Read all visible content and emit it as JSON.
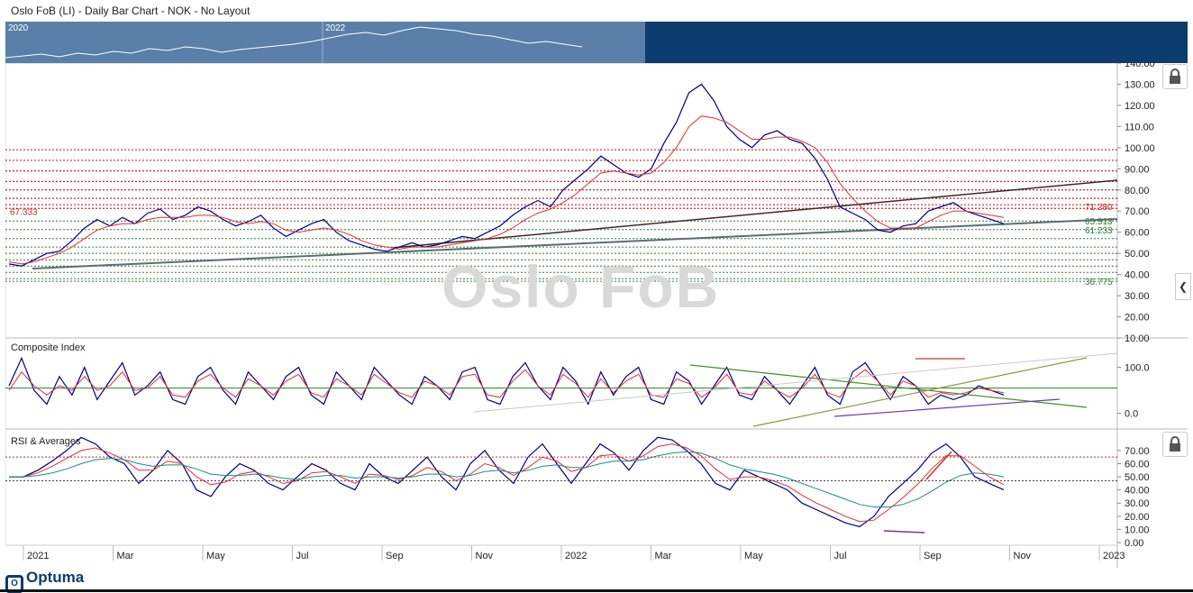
{
  "header": {
    "title": "Oslo FoB (LI) - Daily Bar Chart - NOK - No Layout"
  },
  "navigator": {
    "labels": [
      "2020",
      "2022"
    ]
  },
  "watermark": "Oslo FoB",
  "brand": "Optuma",
  "colors": {
    "price": "#000080",
    "ma_red": "#e03030",
    "ma_teal": "#1a8a8a",
    "green_dot": "#2e7d32",
    "red_dot": "#c62828"
  },
  "chart_data": [
    {
      "type": "line",
      "panel": "price",
      "title": "",
      "ylim": [
        10,
        140
      ],
      "yticks": [
        "140.00",
        "130.00",
        "120.00",
        "110.00",
        "100.00",
        "90.00",
        "80.00",
        "70.00",
        "60.00",
        "50.00",
        "40.00",
        "30.00",
        "20.00",
        "10.00"
      ],
      "x_labels": [
        "2021",
        "Mar",
        "May",
        "Jul",
        "Sep",
        "Nov",
        "2022",
        "Mar",
        "May",
        "Jul",
        "Sep",
        "Nov",
        "2023"
      ],
      "level_labels": {
        "left_red": "67.333",
        "red": "71.280",
        "green1": "65.313",
        "green2": "61.233",
        "green3": "36.775"
      },
      "red_levels": [
        99,
        94,
        89,
        84,
        80,
        76,
        73,
        71.28
      ],
      "green_levels": [
        65.313,
        61.233,
        57,
        53,
        50,
        47,
        44,
        41,
        38,
        36.775
      ],
      "series": [
        {
          "values": [
            45,
            44,
            47,
            50,
            51,
            56,
            62,
            66,
            63,
            67,
            64,
            69,
            71,
            66,
            68,
            72,
            70,
            66,
            63,
            65,
            68,
            62,
            58,
            61,
            64,
            66,
            60,
            56,
            54,
            52,
            51,
            53,
            55,
            53,
            54,
            56,
            58,
            57,
            60,
            63,
            68,
            72,
            75,
            72,
            80,
            85,
            90,
            96,
            92,
            88,
            86,
            90,
            102,
            112,
            126,
            130,
            122,
            110,
            104,
            100,
            106,
            108,
            104,
            102,
            95,
            85,
            72,
            69,
            66,
            61,
            60,
            63,
            64,
            70,
            72,
            74,
            70,
            68,
            66,
            64
          ]
        },
        {
          "values": [
            46,
            45,
            46,
            48,
            50,
            53,
            57,
            61,
            63,
            64,
            64,
            66,
            67,
            67,
            67,
            68,
            68,
            67,
            65,
            64,
            65,
            64,
            61,
            60,
            61,
            62,
            61,
            59,
            56,
            54,
            53,
            52,
            53,
            53,
            53,
            54,
            55,
            56,
            57,
            59,
            62,
            66,
            69,
            71,
            74,
            78,
            83,
            88,
            89,
            88,
            87,
            88,
            93,
            100,
            110,
            115,
            114,
            112,
            108,
            104,
            104,
            105,
            105,
            103,
            100,
            93,
            83,
            76,
            70,
            65,
            62,
            62,
            62,
            65,
            68,
            70,
            70,
            69,
            68,
            67
          ]
        }
      ]
    },
    {
      "type": "line",
      "panel": "composite",
      "title": "Composite Index",
      "ylim": [
        -30,
        160
      ],
      "yticks": [
        "100.0",
        "0.0"
      ],
      "series": [
        {
          "values": [
            60,
            120,
            50,
            20,
            80,
            40,
            100,
            30,
            70,
            110,
            40,
            60,
            90,
            30,
            20,
            80,
            100,
            50,
            20,
            90,
            60,
            30,
            80,
            100,
            40,
            20,
            90,
            60,
            30,
            100,
            70,
            40,
            20,
            80,
            60,
            30,
            90,
            100,
            30,
            20,
            80,
            110,
            60,
            30,
            100,
            70,
            20,
            90,
            40,
            80,
            100,
            30,
            20,
            90,
            70,
            20,
            60,
            100,
            40,
            30,
            80,
            50,
            20,
            60,
            100,
            40,
            20,
            90,
            110,
            70,
            30,
            80,
            60,
            20,
            40,
            30,
            40,
            60,
            50,
            40
          ]
        },
        {
          "values": [
            50,
            90,
            60,
            40,
            60,
            50,
            80,
            50,
            60,
            90,
            50,
            55,
            80,
            40,
            35,
            70,
            85,
            55,
            35,
            75,
            60,
            40,
            70,
            85,
            45,
            35,
            75,
            60,
            40,
            85,
            65,
            45,
            35,
            70,
            60,
            40,
            80,
            85,
            40,
            35,
            70,
            95,
            60,
            40,
            85,
            65,
            35,
            75,
            45,
            70,
            85,
            40,
            35,
            75,
            65,
            35,
            55,
            85,
            45,
            40,
            70,
            50,
            35,
            55,
            85,
            45,
            35,
            75,
            95,
            70,
            40,
            70,
            60,
            35,
            45,
            40,
            45,
            55,
            50,
            45
          ]
        }
      ]
    },
    {
      "type": "line",
      "panel": "rsi",
      "title": "RSI & Averages",
      "ylim": [
        0,
        85
      ],
      "yticks": [
        "70.00",
        "60.00",
        "50.00",
        "40.00",
        "30.00",
        "20.00",
        "10.00",
        "0.00"
      ],
      "series": [
        {
          "values": [
            50,
            50,
            55,
            62,
            70,
            80,
            75,
            65,
            60,
            45,
            55,
            70,
            60,
            40,
            35,
            50,
            60,
            55,
            45,
            40,
            50,
            60,
            55,
            45,
            40,
            60,
            50,
            45,
            55,
            65,
            50,
            40,
            60,
            70,
            55,
            45,
            65,
            75,
            60,
            45,
            60,
            75,
            68,
            55,
            70,
            80,
            78,
            70,
            60,
            45,
            40,
            55,
            50,
            45,
            40,
            30,
            25,
            20,
            15,
            12,
            20,
            35,
            45,
            55,
            68,
            75,
            65,
            50,
            45,
            40
          ]
        },
        {
          "values": [
            50,
            50,
            53,
            58,
            64,
            70,
            72,
            68,
            63,
            55,
            55,
            62,
            60,
            50,
            44,
            46,
            52,
            54,
            50,
            45,
            47,
            53,
            54,
            50,
            45,
            52,
            51,
            48,
            51,
            57,
            54,
            47,
            52,
            60,
            57,
            51,
            57,
            65,
            62,
            54,
            57,
            66,
            67,
            62,
            66,
            73,
            75,
            72,
            66,
            56,
            48,
            50,
            50,
            47,
            43,
            36,
            30,
            25,
            20,
            16,
            17,
            25,
            34,
            44,
            56,
            66,
            66,
            58,
            50,
            44
          ]
        },
        {
          "values": [
            50,
            50,
            51,
            53,
            56,
            60,
            63,
            64,
            63,
            60,
            58,
            59,
            59,
            56,
            52,
            51,
            51,
            52,
            51,
            49,
            48,
            50,
            51,
            51,
            49,
            50,
            50,
            49,
            50,
            52,
            52,
            50,
            51,
            54,
            55,
            53,
            55,
            58,
            59,
            57,
            57,
            60,
            62,
            62,
            63,
            66,
            68,
            69,
            68,
            64,
            59,
            56,
            54,
            52,
            49,
            45,
            41,
            37,
            33,
            29,
            27,
            27,
            29,
            33,
            39,
            46,
            51,
            53,
            52,
            50
          ]
        }
      ]
    }
  ]
}
